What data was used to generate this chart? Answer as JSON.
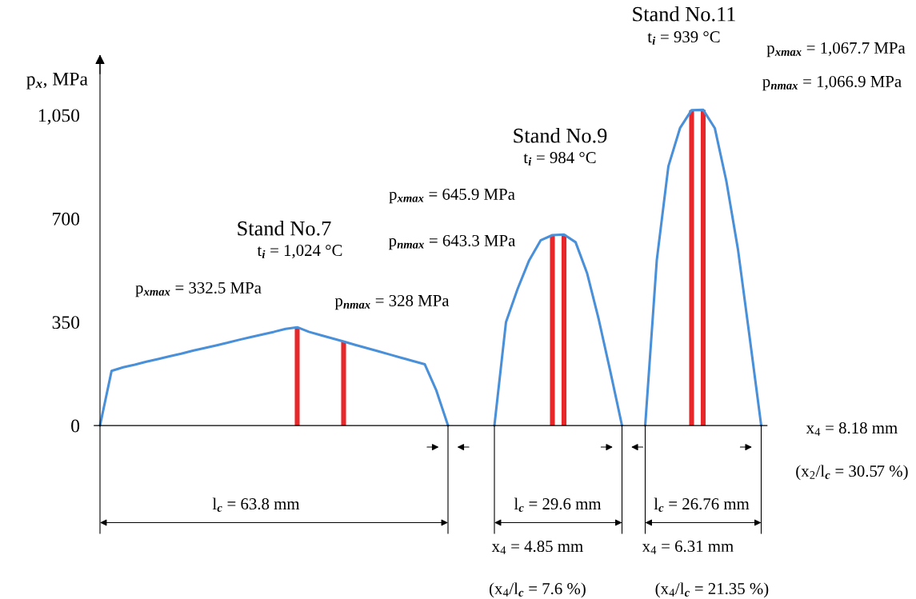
{
  "chart_data": {
    "type": "line",
    "ylabel": "p$_{x}$, MPa",
    "categories": [
      null,
      null,
      null,
      null,
      null,
      null,
      null,
      null,
      null,
      null,
      null,
      null,
      null,
      null,
      null,
      null,
      null,
      null,
      null,
      null,
      null,
      null,
      null,
      null,
      null,
      null,
      null,
      null,
      null,
      null,
      null,
      null,
      null,
      null,
      null,
      null,
      null,
      null,
      null,
      null,
      null,
      null,
      null,
      null,
      null,
      null,
      null,
      null,
      null,
      null,
      null,
      null,
      null,
      null,
      null,
      null,
      null,
      null
    ],
    "series": [
      {
        "color": "#4a90d9",
        "values": [
          0,
          185,
          197,
          206,
          216,
          225,
          234,
          243,
          253,
          262,
          271,
          280,
          290,
          299,
          308,
          317,
          327,
          332.5,
          317,
          306,
          295,
          284,
          273,
          262,
          251,
          240,
          229,
          218,
          207,
          118,
          0,
          null,
          null,
          null,
          null,
          null,
          null,
          null,
          null,
          null,
          null,
          null,
          null,
          null,
          null,
          null,
          null,
          null,
          null,
          null,
          null,
          null,
          null,
          null,
          null,
          null,
          null,
          null
        ]
      },
      {
        "color": "#4a90d9",
        "values": [
          null,
          null,
          null,
          null,
          null,
          null,
          null,
          null,
          null,
          null,
          null,
          null,
          null,
          null,
          null,
          null,
          null,
          null,
          null,
          null,
          null,
          null,
          null,
          null,
          null,
          null,
          null,
          null,
          null,
          null,
          null,
          null,
          null,
          null,
          0,
          350,
          462,
          559,
          627,
          644,
          645.9,
          620,
          514,
          358,
          182,
          0,
          null,
          null,
          null,
          null,
          null,
          null,
          null,
          null,
          null,
          null,
          null,
          null
        ]
      },
      {
        "color": "#4a90d9",
        "values": [
          null,
          null,
          null,
          null,
          null,
          null,
          null,
          null,
          null,
          null,
          null,
          null,
          null,
          null,
          null,
          null,
          null,
          null,
          null,
          null,
          null,
          null,
          null,
          null,
          null,
          null,
          null,
          null,
          null,
          null,
          null,
          null,
          null,
          null,
          null,
          null,
          null,
          null,
          null,
          null,
          null,
          null,
          null,
          null,
          null,
          null,
          null,
          0,
          560,
          877,
          1006,
          1066.9,
          1067.7,
          1006,
          826,
          595,
          300,
          0
        ]
      },
      {
        "type": "bar",
        "color": "#e8272a",
        "values": [
          null,
          null,
          null,
          null,
          null,
          null,
          null,
          null,
          null,
          null,
          null,
          null,
          null,
          null,
          null,
          null,
          null,
          332.5,
          null,
          null,
          null,
          284,
          null,
          null,
          null,
          null,
          null,
          null,
          null,
          null,
          null,
          null,
          null,
          null,
          null,
          null,
          null,
          null,
          null,
          643.3,
          645.9,
          null,
          null,
          null,
          null,
          null,
          null,
          null,
          null,
          null,
          null,
          1066.9,
          1067.7,
          null,
          null,
          null,
          null,
          null
        ]
      }
    ],
    "ylim": [
      -365,
      1250
    ],
    "yticks": [
      0,
      350,
      700,
      {
        "value": 1050,
        "label": "1,050"
      }
    ],
    "tick_labels": "y",
    "annotations": [
      "Stand No.7",
      "t$_{i}$ = 1,024 °C",
      "p$_{xmax}$ = 332.5 MPa",
      "p$_{nmax}$ = 328 MPa",
      "Stand No.9",
      "t$_{i}$ = 984 °C",
      "p$_{xmax}$ = 645.9 MPa",
      "p$_{nmax}$ = 643.3 MPa",
      "Stand No.11",
      "t$_{i}$ = 939 °C",
      "p$_{xmax}$ = 1,067.7 MPa",
      "p$_{nmax}$ = 1,066.9 MPa",
      "l$_{c}$ = 63.8 mm",
      "x$_{4}$ = 4.85 mm",
      "(x$_{4}$/l$_{c}$ = 7.6 %)",
      "l$_{c}$ = 29.6 mm",
      "x$_{4}$ = 6.31 mm",
      "(x$_{4}$/l$_{c}$ = 21.35 %)",
      "l$_{c}$ = 26.76 mm",
      "x$_{4}$ = 8.18 mm",
      "(x$_{2}$/l$_{c}$ = 30.57 %)"
    ]
  }
}
